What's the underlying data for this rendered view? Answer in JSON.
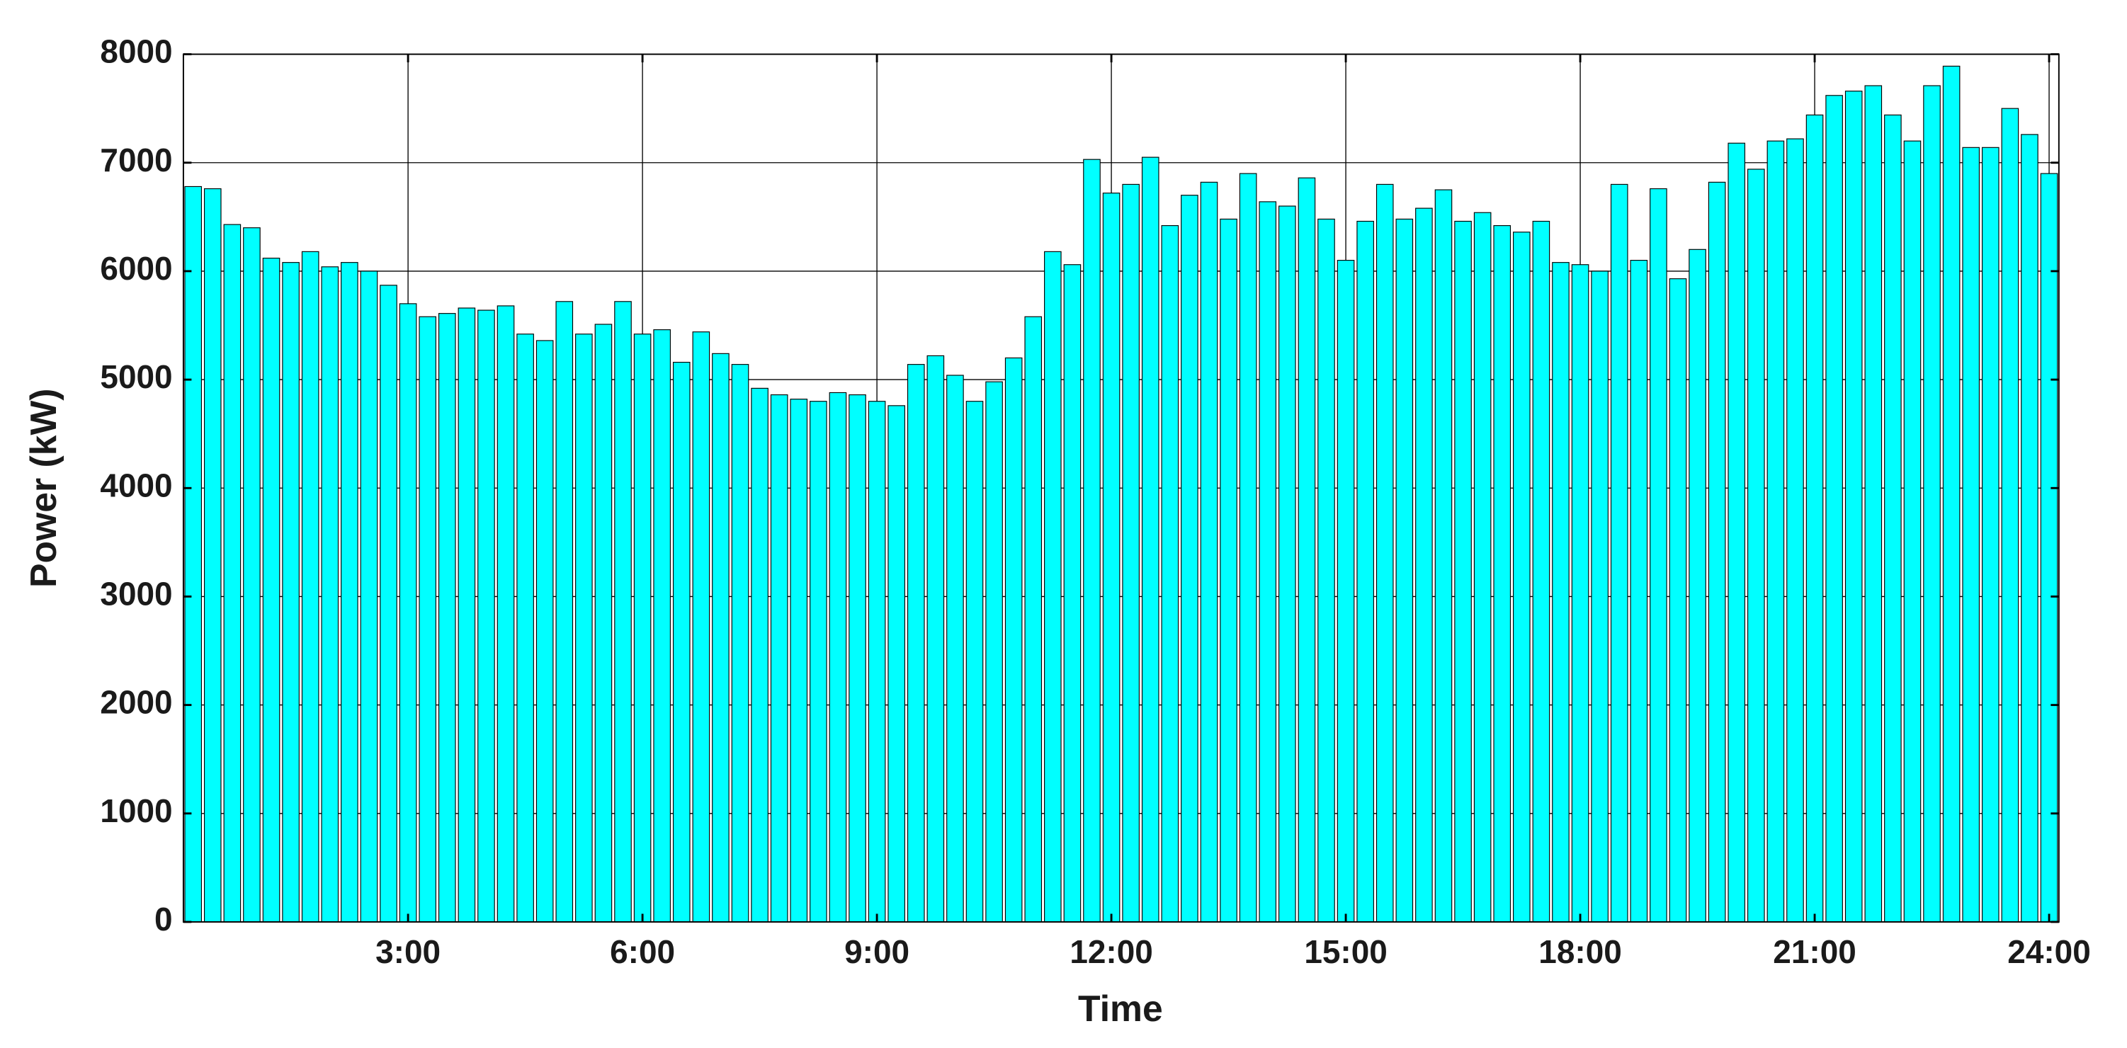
{
  "chart_data": {
    "type": "bar",
    "x_label": "Time",
    "y_label": "Power (kW)",
    "x": [
      0.25,
      0.5,
      0.75,
      1,
      1.25,
      1.5,
      1.75,
      2,
      2.25,
      2.5,
      2.75,
      3,
      3.25,
      3.5,
      3.75,
      4,
      4.25,
      4.5,
      4.75,
      5,
      5.25,
      5.5,
      5.75,
      6,
      6.25,
      6.5,
      6.75,
      7,
      7.25,
      7.5,
      7.75,
      8,
      8.25,
      8.5,
      8.75,
      9,
      9.25,
      9.5,
      9.75,
      10,
      10.25,
      10.5,
      10.75,
      11,
      11.25,
      11.5,
      11.75,
      12,
      12.25,
      12.5,
      12.75,
      13,
      13.25,
      13.5,
      13.75,
      14,
      14.25,
      14.5,
      14.75,
      15,
      15.25,
      15.5,
      15.75,
      16,
      16.25,
      16.5,
      16.75,
      17,
      17.25,
      17.5,
      17.75,
      18,
      18.25,
      18.5,
      18.75,
      19,
      19.25,
      19.5,
      19.75,
      20,
      20.25,
      20.5,
      20.75,
      21,
      21.25,
      21.5,
      21.75,
      22,
      22.25,
      22.5,
      22.75,
      23,
      23.25,
      23.5,
      23.75,
      24
    ],
    "values": [
      6780,
      6760,
      6430,
      6400,
      6120,
      6080,
      6180,
      6040,
      6080,
      6000,
      5870,
      5700,
      5580,
      5610,
      5660,
      5640,
      5680,
      5420,
      5360,
      5720,
      5420,
      5510,
      5720,
      5420,
      5460,
      5160,
      5440,
      5240,
      5140,
      4920,
      4860,
      4820,
      4800,
      4880,
      4860,
      4800,
      4760,
      5140,
      5220,
      5040,
      4800,
      4980,
      5200,
      5580,
      6180,
      6060,
      7030,
      6720,
      6800,
      7050,
      6420,
      6700,
      6820,
      6480,
      6900,
      6640,
      6600,
      6860,
      6480,
      6100,
      6460,
      6800,
      6480,
      6580,
      6750,
      6460,
      6540,
      6420,
      6360,
      6460,
      6080,
      6060,
      6000,
      6800,
      6100,
      6760,
      5930,
      6200,
      6820,
      7180,
      6940,
      7200,
      7220,
      7440,
      7620,
      7660,
      7710,
      7440,
      7200,
      7710,
      7890,
      7140,
      7140,
      7500,
      7260,
      6900
    ],
    "color": "#00ffff",
    "xlim": [
      0.125,
      24.125
    ],
    "xticks": [
      {
        "value": 3,
        "label": "3:00"
      },
      {
        "value": 6,
        "label": "6:00"
      },
      {
        "value": 9,
        "label": "9:00"
      },
      {
        "value": 12,
        "label": "12:00"
      },
      {
        "value": 15,
        "label": "15:00"
      },
      {
        "value": 18,
        "label": "18:00"
      },
      {
        "value": 21,
        "label": "21:00"
      },
      {
        "value": 24,
        "label": "24:00"
      }
    ],
    "ylim": [
      0,
      8000
    ],
    "yticks": [
      0,
      1000,
      2000,
      3000,
      4000,
      5000,
      6000,
      7000,
      8000
    ],
    "grid": true
  }
}
